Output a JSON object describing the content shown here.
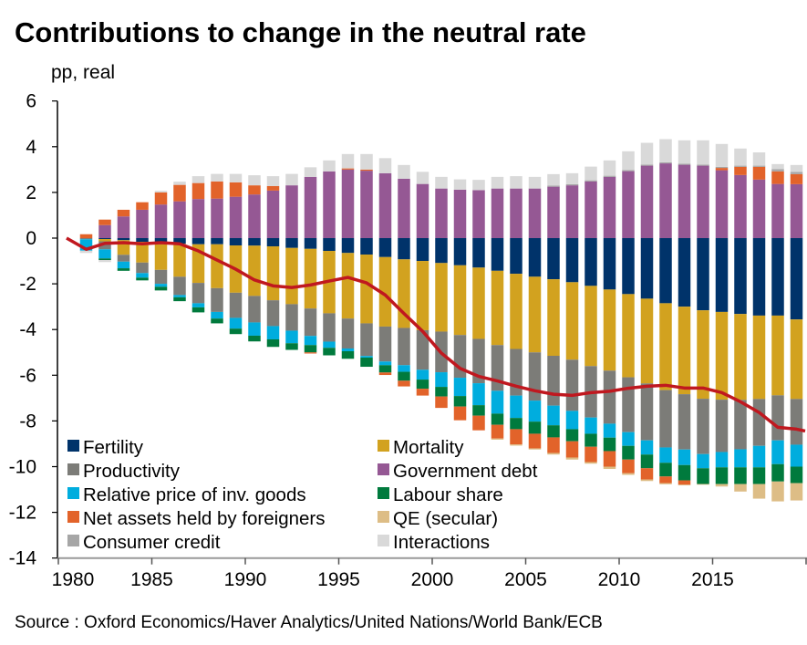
{
  "chart_data": {
    "type": "bar",
    "stacked": true,
    "title": "Contributions to change in the neutral rate",
    "ylabel": "pp, real",
    "source": "Source : Oxford Economics/Haver Analytics/United Nations/World Bank/ECB",
    "ylim": [
      -14,
      6
    ],
    "yticks": [
      6,
      4,
      2,
      0,
      -2,
      -4,
      -6,
      -8,
      -10,
      -12,
      -14
    ],
    "xticks": [
      1980,
      1985,
      1990,
      1995,
      2000,
      2005,
      2010,
      2015
    ],
    "grid": false,
    "legend_placement": "bottom-left",
    "categories": [
      1981,
      1982,
      1983,
      1984,
      1985,
      1986,
      1987,
      1988,
      1989,
      1990,
      1991,
      1992,
      1993,
      1994,
      1995,
      1996,
      1997,
      1998,
      1999,
      2000,
      2001,
      2002,
      2003,
      2004,
      2005,
      2006,
      2007,
      2008,
      2009,
      2010,
      2011,
      2012,
      2013,
      2014,
      2015,
      2016,
      2017,
      2018,
      2019
    ],
    "series": [
      {
        "name": "Fertility",
        "color": "#00336A",
        "values": [
          0,
          -0.04,
          -0.09,
          -0.16,
          -0.27,
          -0.25,
          -0.27,
          -0.27,
          -0.32,
          -0.33,
          -0.36,
          -0.43,
          -0.47,
          -0.56,
          -0.65,
          -0.72,
          -0.83,
          -0.93,
          -1.0,
          -1.09,
          -1.19,
          -1.29,
          -1.43,
          -1.56,
          -1.69,
          -1.8,
          -1.93,
          -2.09,
          -2.25,
          -2.45,
          -2.65,
          -2.85,
          -3.0,
          -3.16,
          -3.23,
          -3.32,
          -3.39,
          -3.39,
          -3.56
        ]
      },
      {
        "name": "Mortality",
        "color": "#D2A21F",
        "values": [
          0,
          -0.1,
          -0.64,
          -0.91,
          -1.12,
          -1.44,
          -1.69,
          -1.92,
          -2.07,
          -2.2,
          -2.36,
          -2.46,
          -2.61,
          -2.73,
          -2.87,
          -3.01,
          -3.04,
          -3.0,
          -3.03,
          -3.0,
          -3.05,
          -3.12,
          -3.25,
          -3.29,
          -3.31,
          -3.35,
          -3.39,
          -3.51,
          -3.55,
          -3.64,
          -3.71,
          -3.8,
          -3.83,
          -3.87,
          -3.84,
          -3.76,
          -3.65,
          -3.49,
          -3.48
        ]
      },
      {
        "name": "Productivity",
        "color": "#7C7C78",
        "values": [
          -0.05,
          -0.35,
          -0.3,
          -0.46,
          -0.61,
          -0.8,
          -0.89,
          -1.04,
          -1.1,
          -1.16,
          -1.13,
          -1.16,
          -1.2,
          -1.24,
          -1.31,
          -1.43,
          -1.53,
          -1.63,
          -1.73,
          -1.78,
          -1.87,
          -1.94,
          -2.0,
          -2.04,
          -2.11,
          -2.18,
          -2.24,
          -2.25,
          -2.32,
          -2.4,
          -2.49,
          -2.51,
          -2.42,
          -2.42,
          -2.29,
          -2.16,
          -2.05,
          -1.97,
          -2.0
        ]
      },
      {
        "name": "Government debt",
        "color": "#955894",
        "values": [
          0,
          0.57,
          0.95,
          1.24,
          1.47,
          1.61,
          1.71,
          1.73,
          1.81,
          1.91,
          2.08,
          2.31,
          2.68,
          2.92,
          3.0,
          2.95,
          2.84,
          2.6,
          2.37,
          2.17,
          2.12,
          2.1,
          2.17,
          2.17,
          2.17,
          2.25,
          2.31,
          2.48,
          2.68,
          2.93,
          3.17,
          3.27,
          3.21,
          3.17,
          2.97,
          2.76,
          2.56,
          2.37,
          2.36
        ]
      },
      {
        "name": "Relative price of inv. goods",
        "color": "#00ADDE",
        "values": [
          -0.5,
          -0.4,
          -0.29,
          -0.2,
          -0.13,
          -0.1,
          -0.18,
          -0.29,
          -0.47,
          -0.58,
          -0.58,
          -0.55,
          -0.4,
          -0.27,
          -0.12,
          -0.07,
          -0.16,
          -0.29,
          -0.43,
          -0.64,
          -0.8,
          -0.96,
          -1.0,
          -0.98,
          -0.92,
          -0.86,
          -0.8,
          -0.71,
          -0.61,
          -0.6,
          -0.62,
          -0.67,
          -0.68,
          -0.62,
          -0.67,
          -0.79,
          -0.94,
          -1.04,
          -0.96
        ]
      },
      {
        "name": "Labour share",
        "color": "#007A3D",
        "values": [
          0,
          -0.07,
          -0.11,
          -0.12,
          -0.16,
          -0.17,
          -0.22,
          -0.21,
          -0.24,
          -0.25,
          -0.33,
          -0.29,
          -0.32,
          -0.33,
          -0.33,
          -0.4,
          -0.32,
          -0.39,
          -0.4,
          -0.42,
          -0.46,
          -0.46,
          -0.49,
          -0.49,
          -0.53,
          -0.53,
          -0.53,
          -0.57,
          -0.59,
          -0.6,
          -0.6,
          -0.6,
          -0.67,
          -0.69,
          -0.73,
          -0.73,
          -0.73,
          -0.76,
          -0.72
        ]
      },
      {
        "name": "Net assets held by foreigners",
        "color": "#E2632A",
        "values": [
          0.17,
          0.24,
          0.29,
          0.33,
          0.53,
          0.72,
          0.7,
          0.75,
          0.63,
          0.4,
          0.2,
          0,
          -0.05,
          0,
          0.05,
          0.05,
          -0.11,
          -0.25,
          -0.3,
          -0.5,
          -0.6,
          -0.64,
          -0.6,
          -0.67,
          -0.64,
          -0.68,
          -0.71,
          -0.67,
          -0.68,
          -0.6,
          -0.49,
          -0.29,
          -0.19,
          0,
          0.1,
          0.36,
          0.56,
          0.55,
          0.44
        ]
      },
      {
        "name": "QE (secular)",
        "color": "#DDBD86",
        "values": [
          0,
          0,
          0,
          0,
          0,
          0,
          0,
          0,
          0,
          0,
          0,
          0,
          0,
          0,
          0,
          0,
          0,
          0,
          0,
          0,
          0,
          0,
          -0.05,
          -0.05,
          -0.05,
          -0.07,
          -0.09,
          -0.07,
          -0.1,
          -0.07,
          -0.07,
          -0.05,
          -0.03,
          -0.03,
          -0.11,
          -0.33,
          -0.64,
          -0.87,
          -0.76
        ]
      },
      {
        "name": "Consumer credit",
        "color": "#A6A6A6",
        "values": [
          0,
          0,
          0,
          0,
          0,
          0,
          0,
          0,
          0,
          0,
          0,
          0,
          0,
          0,
          0,
          0,
          0,
          0,
          0,
          0,
          0,
          0,
          0,
          0,
          0,
          0.05,
          0.05,
          0.05,
          0.05,
          0.05,
          0.05,
          0.05,
          0.05,
          0.05,
          0.05,
          0.05,
          0.05,
          0.1,
          0.1
        ]
      },
      {
        "name": "Interactions",
        "color": "#D9D9D9",
        "values": [
          -0.1,
          -0.09,
          0,
          0,
          0.07,
          0.14,
          0.3,
          0.33,
          0.37,
          0.44,
          0.43,
          0.5,
          0.42,
          0.48,
          0.63,
          0.68,
          0.66,
          0.6,
          0.53,
          0.51,
          0.45,
          0.45,
          0.51,
          0.54,
          0.51,
          0.5,
          0.48,
          0.6,
          0.67,
          0.82,
          0.95,
          1.01,
          1.02,
          1.06,
          1.0,
          0.75,
          0.58,
          0.22,
          0.3
        ]
      }
    ],
    "line": {
      "color": "#C0181F",
      "x": [
        1980,
        1981,
        1982,
        1983,
        1984,
        1985,
        1986,
        1987,
        1988,
        1989,
        1990,
        1991,
        1992,
        1993,
        1994,
        1995,
        1996,
        1997,
        1998,
        1999,
        2000,
        2001,
        2002,
        2003,
        2004,
        2005,
        2006,
        2007,
        2008,
        2009,
        2010,
        2011,
        2012,
        2013,
        2014,
        2015,
        2016,
        2017,
        2018,
        2019
      ],
      "values": [
        0,
        -0.49,
        -0.23,
        -0.2,
        -0.25,
        -0.2,
        -0.25,
        -0.56,
        -0.96,
        -1.36,
        -1.83,
        -2.09,
        -2.16,
        -2.05,
        -1.88,
        -1.72,
        -1.96,
        -2.49,
        -3.3,
        -4.08,
        -5.03,
        -5.7,
        -6.05,
        -6.25,
        -6.48,
        -6.68,
        -6.83,
        -6.88,
        -6.76,
        -6.7,
        -6.57,
        -6.48,
        -6.44,
        -6.56,
        -6.56,
        -6.76,
        -7.16,
        -7.63,
        -8.28,
        -8.36
      ]
    },
    "legend_order": [
      "Fertility",
      "Mortality",
      "Productivity",
      "Government debt",
      "Relative price of inv. goods",
      "Labour share",
      "Net assets held by foreigners",
      "QE (secular)",
      "Consumer credit",
      "Interactions"
    ]
  }
}
